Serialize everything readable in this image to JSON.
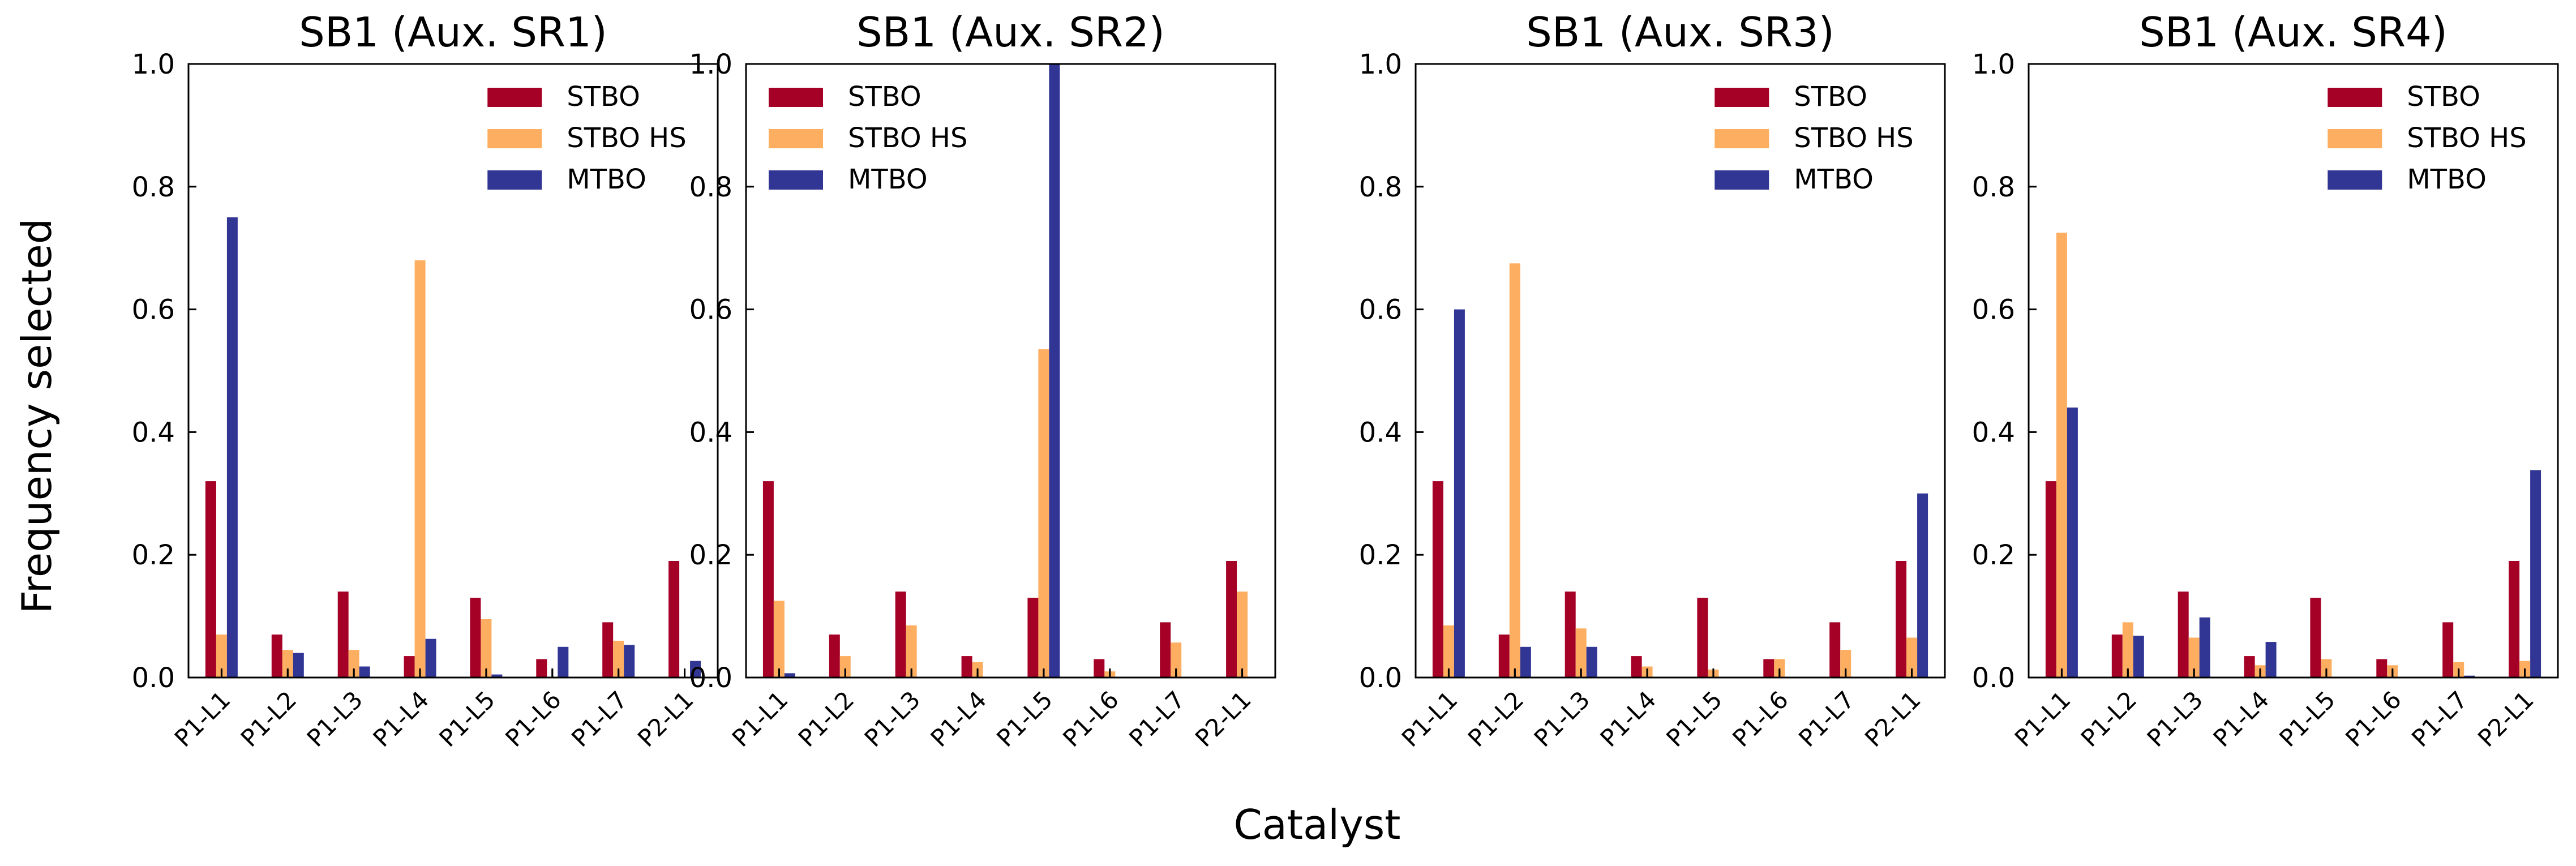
{
  "figure": {
    "ylabel": "Frequency selected",
    "xlabel": "Catalyst"
  },
  "colors": {
    "STBO": "#a50026",
    "STBO HS": "#fdae61",
    "MTBO": "#313695"
  },
  "chart_data": [
    {
      "type": "bar",
      "title": "SB1 (Aux. SR1)",
      "categories": [
        "P1-L1",
        "P1-L2",
        "P1-L3",
        "P1-L4",
        "P1-L5",
        "P1-L6",
        "P1-L7",
        "P2-L1"
      ],
      "ylim": [
        0,
        1.0
      ],
      "yticks": [
        "0.0",
        "0.2",
        "0.4",
        "0.6",
        "0.8",
        "1.0"
      ],
      "legend_position": "top-right",
      "series": [
        {
          "name": "STBO",
          "values": [
            0.32,
            0.07,
            0.14,
            0.035,
            0.13,
            0.03,
            0.09,
            0.19
          ]
        },
        {
          "name": "STBO HS",
          "values": [
            0.07,
            0.045,
            0.045,
            0.68,
            0.095,
            0.0,
            0.06,
            0.0
          ]
        },
        {
          "name": "MTBO",
          "values": [
            0.75,
            0.04,
            0.018,
            0.063,
            0.005,
            0.05,
            0.053,
            0.027
          ]
        }
      ]
    },
    {
      "type": "bar",
      "title": "SB1 (Aux. SR2)",
      "categories": [
        "P1-L1",
        "P1-L2",
        "P1-L3",
        "P1-L4",
        "P1-L5",
        "P1-L6",
        "P1-L7",
        "P2-L1"
      ],
      "ylim": [
        0,
        1.0
      ],
      "yticks": [
        "0.0",
        "0.2",
        "0.4",
        "0.6",
        "0.8",
        "1.0"
      ],
      "legend_position": "top-left",
      "series": [
        {
          "name": "STBO",
          "values": [
            0.32,
            0.07,
            0.14,
            0.035,
            0.13,
            0.03,
            0.09,
            0.19
          ]
        },
        {
          "name": "STBO HS",
          "values": [
            0.125,
            0.035,
            0.085,
            0.025,
            0.535,
            0.01,
            0.057,
            0.14
          ]
        },
        {
          "name": "MTBO",
          "values": [
            0.007,
            0.0,
            0.0,
            0.0,
            1.0,
            0.0,
            0.0,
            0.0
          ]
        }
      ]
    },
    {
      "type": "bar",
      "title": "SB1 (Aux. SR3)",
      "categories": [
        "P1-L1",
        "P1-L2",
        "P1-L3",
        "P1-L4",
        "P1-L5",
        "P1-L6",
        "P1-L7",
        "P2-L1"
      ],
      "ylim": [
        0,
        1.0
      ],
      "yticks": [
        "0.0",
        "0.2",
        "0.4",
        "0.6",
        "0.8",
        "1.0"
      ],
      "legend_position": "top-right",
      "series": [
        {
          "name": "STBO",
          "values": [
            0.32,
            0.07,
            0.14,
            0.035,
            0.13,
            0.03,
            0.09,
            0.19
          ]
        },
        {
          "name": "STBO HS",
          "values": [
            0.085,
            0.675,
            0.08,
            0.018,
            0.013,
            0.03,
            0.045,
            0.065
          ]
        },
        {
          "name": "MTBO",
          "values": [
            0.6,
            0.05,
            0.05,
            0.0,
            0.0,
            0.0,
            0.0,
            0.3
          ]
        }
      ]
    },
    {
      "type": "bar",
      "title": "SB1 (Aux. SR4)",
      "categories": [
        "P1-L1",
        "P1-L2",
        "P1-L3",
        "P1-L4",
        "P1-L5",
        "P1-L6",
        "P1-L7",
        "P2-L1"
      ],
      "ylim": [
        0,
        1.0
      ],
      "yticks": [
        "0.0",
        "0.2",
        "0.4",
        "0.6",
        "0.8",
        "1.0"
      ],
      "legend_position": "top-right",
      "series": [
        {
          "name": "STBO",
          "values": [
            0.32,
            0.07,
            0.14,
            0.035,
            0.13,
            0.03,
            0.09,
            0.19
          ]
        },
        {
          "name": "STBO HS",
          "values": [
            0.725,
            0.09,
            0.065,
            0.02,
            0.03,
            0.02,
            0.025,
            0.027
          ]
        },
        {
          "name": "MTBO",
          "values": [
            0.44,
            0.068,
            0.098,
            0.058,
            0.0,
            0.0,
            0.003,
            0.338
          ]
        }
      ]
    }
  ]
}
